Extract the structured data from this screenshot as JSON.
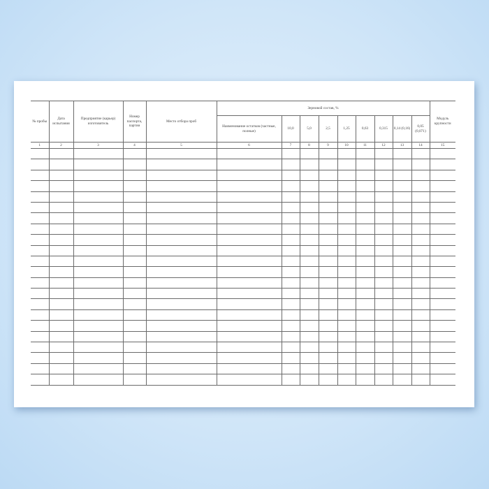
{
  "form": {
    "headers": {
      "sample_no": "№ пробы",
      "test_date": "Дата испытания",
      "enterprise": "Предприятие (карьер) изготовитель",
      "passport": "Номер паспорта, партии",
      "sampling_place": "Место отбора проб",
      "grain_composition": "Зерновой состав, %",
      "residue_name": "Наименование остатков (частные, полные)",
      "sieves": [
        "10,0",
        "5,0",
        "2,5",
        "1,25",
        "0,63",
        "0,315",
        "0,14 (0,16)",
        "0,05 (0,071)"
      ],
      "fineness_modulus": "Модуль крупности"
    },
    "column_numbers": [
      "1",
      "2",
      "3",
      "4",
      "5",
      "6",
      "7",
      "8",
      "9",
      "10",
      "11",
      "12",
      "13",
      "14",
      "15"
    ],
    "empty_rows": 22
  },
  "colors": {
    "background": "#cfe5f8",
    "paper": "#ffffff",
    "lines": "#6a6a6a"
  }
}
